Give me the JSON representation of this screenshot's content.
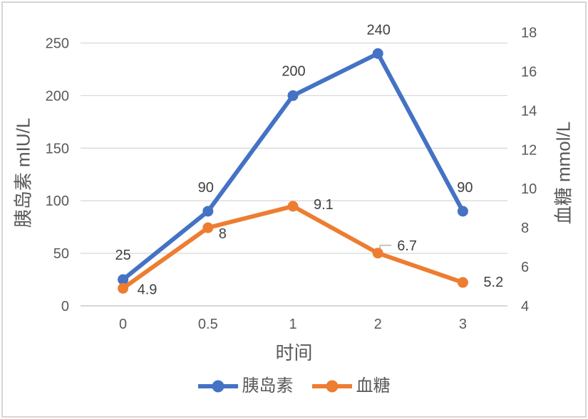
{
  "chart_data": {
    "type": "line",
    "title": "",
    "categories": [
      "0",
      "0.5",
      "1",
      "2",
      "3"
    ],
    "series": [
      {
        "name": "胰岛素",
        "axis": "left",
        "color": "#4472C4",
        "values": [
          25,
          90,
          200,
          240,
          90
        ],
        "labels": [
          "25",
          "90",
          "200",
          "240",
          "90"
        ],
        "label_anchor": "middle",
        "label_offsets": [
          [
            0,
            -35
          ],
          [
            -3,
            -34
          ],
          [
            1,
            -35
          ],
          [
            1,
            -34
          ],
          [
            3,
            -34
          ]
        ]
      },
      {
        "name": "血糖",
        "axis": "right",
        "color": "#ED7D31",
        "values": [
          4.9,
          8,
          9.1,
          6.7,
          5.2
        ],
        "labels": [
          "4.9",
          "8",
          "9.1",
          "6.7",
          "5.2"
        ],
        "label_anchor": "start",
        "label_offsets": [
          [
            20,
            1
          ],
          [
            15,
            8
          ],
          [
            29,
            -3
          ],
          [
            27,
            -11
          ],
          [
            29,
            -1
          ]
        ],
        "leader_index": 3,
        "leader_offsets": [
          [
            3,
            -3
          ],
          [
            3,
            -11
          ],
          [
            19,
            -11
          ]
        ]
      }
    ],
    "left_axis": {
      "title": "胰岛素 mIU/L",
      "min": 0,
      "max": 250,
      "ticks": [
        0,
        50,
        100,
        150,
        200,
        250
      ]
    },
    "right_axis": {
      "title": "血糖 mmol/L",
      "min": 4,
      "max": 18,
      "ticks": [
        4,
        6,
        8,
        10,
        12,
        14,
        16,
        18
      ]
    },
    "x_axis": {
      "title": "时间"
    },
    "legend": [
      "胰岛素",
      "血糖"
    ],
    "legend_position": "bottom",
    "grid": "horizontal",
    "colors": {
      "series_blue": "#4472C4",
      "series_orange": "#ED7D31",
      "gridline": "#D9D9D9",
      "axis_line": "#BFBFBF",
      "tick_text": "#595959",
      "data_label_text": "#404040",
      "leader_line": "#A6A6A6",
      "frame_border": "#D6D6D6"
    }
  }
}
